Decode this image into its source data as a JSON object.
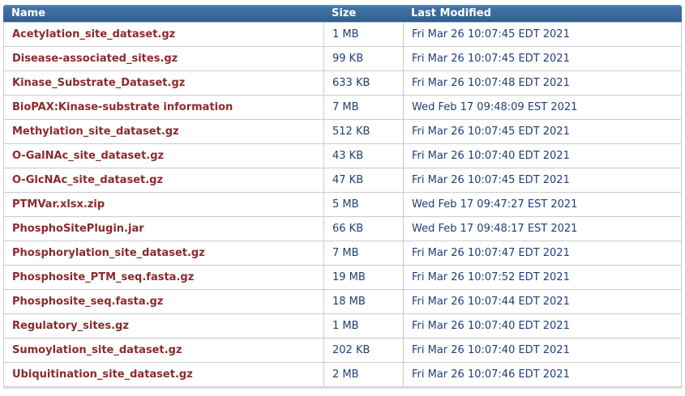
{
  "colors": {
    "header_bg": "#3a6a9c",
    "header_text": "#ffffff",
    "file_link_text": "#8b2a2b",
    "value_text": "#1f3e78",
    "row_border": "#cccccc",
    "row_bg": "#ffffff"
  },
  "table": {
    "columns": [
      {
        "key": "name",
        "label": "Name"
      },
      {
        "key": "size",
        "label": "Size"
      },
      {
        "key": "last_modified",
        "label": "Last Modified"
      }
    ],
    "files": [
      {
        "name": "Acetylation_site_dataset.gz",
        "size": "1 MB",
        "last_modified": "Fri Mar 26 10:07:45 EDT 2021"
      },
      {
        "name": "Disease-associated_sites.gz",
        "size": "99 KB",
        "last_modified": "Fri Mar 26 10:07:45 EDT 2021"
      },
      {
        "name": "Kinase_Substrate_Dataset.gz",
        "size": "633 KB",
        "last_modified": "Fri Mar 26 10:07:48 EDT 2021"
      },
      {
        "name": "BioPAX:Kinase-substrate information",
        "size": "7 MB",
        "last_modified": "Wed Feb 17 09:48:09 EST 2021"
      },
      {
        "name": "Methylation_site_dataset.gz",
        "size": "512 KB",
        "last_modified": "Fri Mar 26 10:07:45 EDT 2021"
      },
      {
        "name": "O-GalNAc_site_dataset.gz",
        "size": "43 KB",
        "last_modified": "Fri Mar 26 10:07:40 EDT 2021"
      },
      {
        "name": "O-GlcNAc_site_dataset.gz",
        "size": "47 KB",
        "last_modified": "Fri Mar 26 10:07:45 EDT 2021"
      },
      {
        "name": "PTMVar.xlsx.zip",
        "size": "5 MB",
        "last_modified": "Wed Feb 17 09:47:27 EST 2021"
      },
      {
        "name": "PhosphoSitePlugin.jar",
        "size": "66 KB",
        "last_modified": "Wed Feb 17 09:48:17 EST 2021"
      },
      {
        "name": "Phosphorylation_site_dataset.gz",
        "size": "7 MB",
        "last_modified": "Fri Mar 26 10:07:47 EDT 2021"
      },
      {
        "name": "Phosphosite_PTM_seq.fasta.gz",
        "size": "19 MB",
        "last_modified": "Fri Mar 26 10:07:52 EDT 2021"
      },
      {
        "name": "Phosphosite_seq.fasta.gz",
        "size": "18 MB",
        "last_modified": "Fri Mar 26 10:07:44 EDT 2021"
      },
      {
        "name": "Regulatory_sites.gz",
        "size": "1 MB",
        "last_modified": "Fri Mar 26 10:07:40 EDT 2021"
      },
      {
        "name": "Sumoylation_site_dataset.gz",
        "size": "202 KB",
        "last_modified": "Fri Mar 26 10:07:40 EDT 2021"
      },
      {
        "name": "Ubiquitination_site_dataset.gz",
        "size": "2 MB",
        "last_modified": "Fri Mar 26 10:07:46 EDT 2021"
      }
    ]
  }
}
